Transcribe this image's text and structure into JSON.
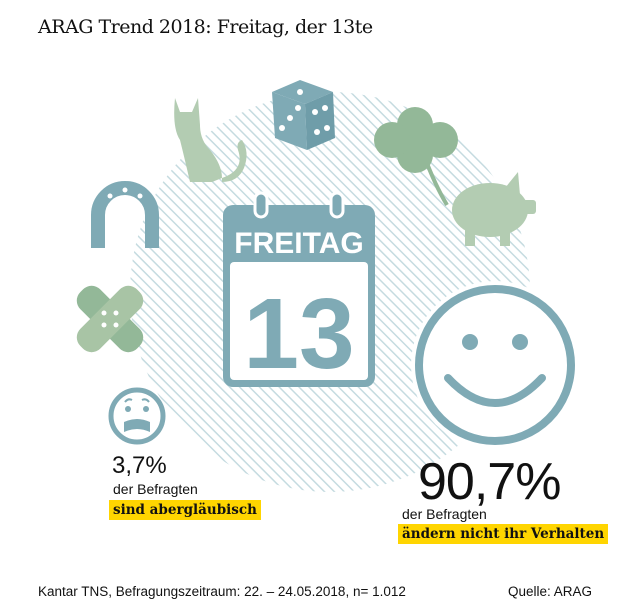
{
  "title": "ARAG Trend 2018: Freitag, der 13te",
  "calendar": {
    "day_label": "FREITAG",
    "day_number": "13"
  },
  "icons": [
    "cat-icon",
    "dice-icon",
    "clover-icon",
    "horseshoe-icon",
    "pig-icon",
    "bandage-icon",
    "scared-face-icon",
    "smiley-icon"
  ],
  "stat_superstitious": {
    "value": "3,7%",
    "line1": "der Befragten",
    "highlight": "sind abergläubisch"
  },
  "stat_unchanged": {
    "value": "90,7%",
    "line1": "der Befragten",
    "highlight": "ändern nicht ihr Verhalten"
  },
  "footer": {
    "source_note": "Kantar TNS, Befragungszeitraum: 22. – 24.05.2018, n= 1.012",
    "source": "Quelle: ARAG"
  },
  "colors": {
    "teal": "#7FAAB5",
    "green_light": "#B3CCB2",
    "green": "#93B898",
    "highlight": "#FFD500"
  }
}
